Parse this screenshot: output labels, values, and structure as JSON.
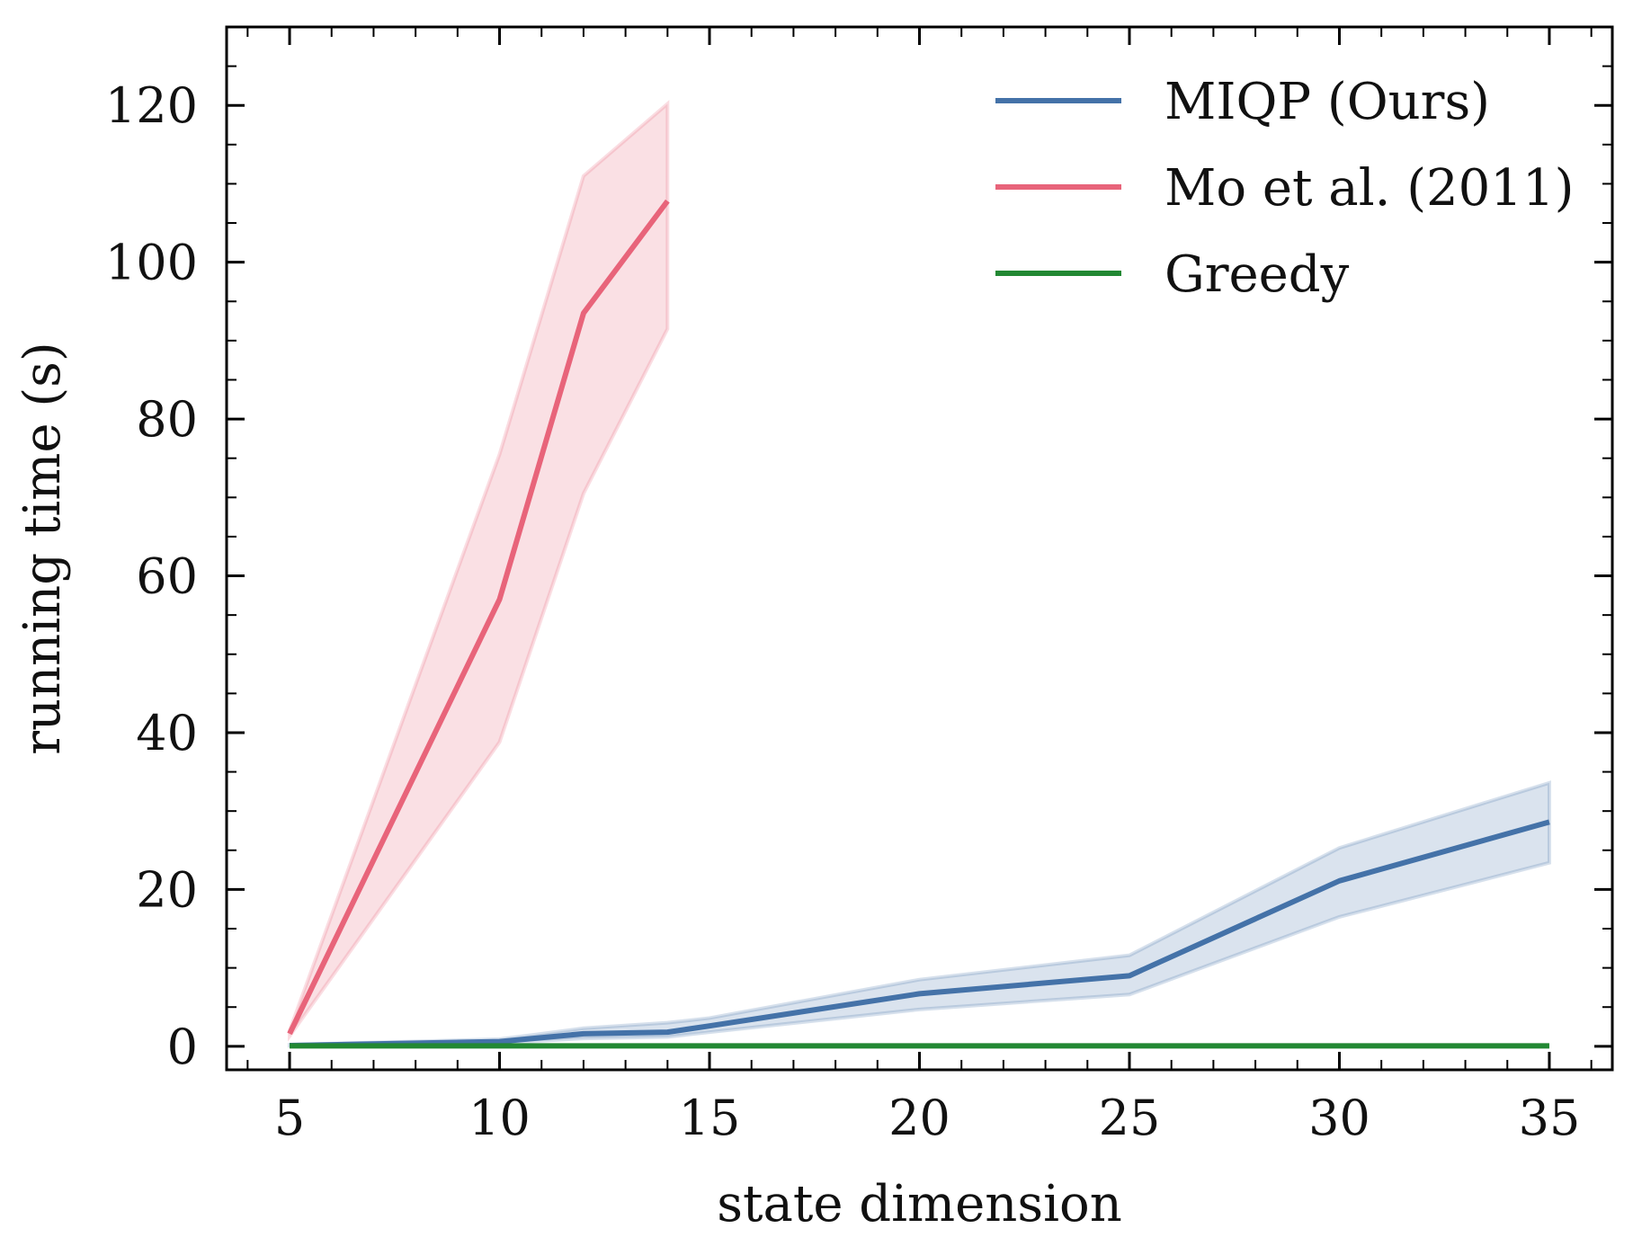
{
  "chart_data": {
    "type": "line",
    "title": "",
    "xlabel": "state dimension",
    "ylabel": "running time (s)",
    "xlim": [
      3.5,
      36.5
    ],
    "ylim": [
      -3,
      130
    ],
    "xticks": [
      5,
      10,
      15,
      20,
      25,
      30,
      35
    ],
    "xtick_labels": [
      "5",
      "10",
      "15",
      "20",
      "25",
      "30",
      "35"
    ],
    "yticks": [
      0,
      20,
      40,
      60,
      80,
      100,
      120
    ],
    "ytick_labels": [
      "0",
      "20",
      "40",
      "60",
      "80",
      "100",
      "120"
    ],
    "x_minor_step": 1,
    "y_minor_step": 5,
    "grid": false,
    "legend_position": "top-right",
    "series": [
      {
        "name": "MIQP (Ours)",
        "color": "#4472a8",
        "x": [
          5,
          10,
          12,
          14,
          15,
          20,
          25,
          30,
          35
        ],
        "values": [
          0.1,
          0.6,
          1.6,
          1.8,
          2.6,
          6.7,
          9.0,
          21.1,
          28.6
        ],
        "lower": [
          0.05,
          0.4,
          1.0,
          1.2,
          1.8,
          4.7,
          6.6,
          16.5,
          23.4
        ],
        "upper": [
          0.2,
          0.9,
          2.3,
          3.0,
          3.6,
          8.5,
          11.6,
          25.3,
          33.6
        ]
      },
      {
        "name": "Mo et al. (2011)",
        "color": "#e8647a",
        "x": [
          5,
          10,
          12,
          14
        ],
        "values": [
          1.6,
          57.0,
          93.5,
          107.8
        ],
        "lower": [
          1.3,
          38.8,
          70.5,
          91.5
        ],
        "upper": [
          2.0,
          75.5,
          111.0,
          120.2
        ]
      },
      {
        "name": "Greedy",
        "color": "#228833",
        "x": [
          5,
          10,
          15,
          20,
          25,
          30,
          35
        ],
        "values": [
          0.05,
          0.05,
          0.05,
          0.05,
          0.05,
          0.05,
          0.05
        ],
        "lower": [
          0.05,
          0.05,
          0.05,
          0.05,
          0.05,
          0.05,
          0.05
        ],
        "upper": [
          0.05,
          0.05,
          0.05,
          0.05,
          0.05,
          0.05,
          0.05
        ]
      }
    ]
  }
}
